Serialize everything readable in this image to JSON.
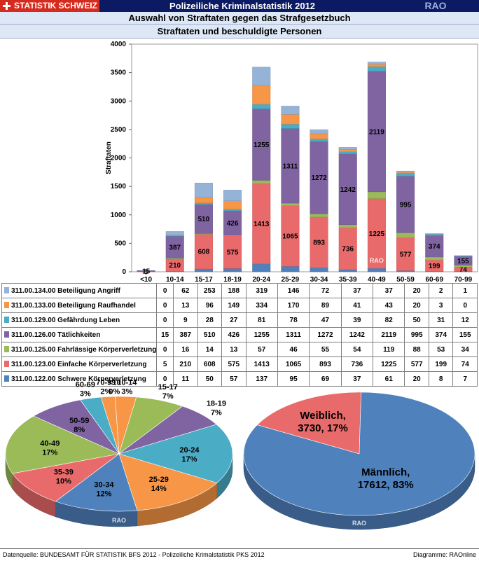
{
  "header": {
    "logo_text": "STATISTIK SCHWEIZ",
    "title": "Polizeiliche Kriminalstatistik 2012",
    "brand": "RAO"
  },
  "subtitle1": "Auswahl von Straftaten gegen das Strafgesetzbuch",
  "subtitle2": "Straftaten und beschuldigte Personen",
  "watermark": "RAO",
  "chart_data": [
    {
      "type": "bar",
      "stacked": true,
      "ylabel": "Straftaten",
      "ylim": [
        0,
        4000
      ],
      "yticks": [
        "0",
        "500",
        "1000",
        "1500",
        "2000",
        "2500",
        "3000",
        "3500",
        "4000"
      ],
      "categories": [
        "<10",
        "10-14",
        "15-17",
        "18-19",
        "20-24",
        "25-29",
        "30-34",
        "35-39",
        "40-49",
        "50-59",
        "60-69",
        "70-99"
      ],
      "series": [
        {
          "name": "311.00.122.00 Schwere Körperverletzung",
          "color": "#4f81bd",
          "values": [
            0,
            11,
            50,
            57,
            137,
            95,
            69,
            37,
            61,
            20,
            8,
            7
          ]
        },
        {
          "name": "311.00.123.00 Einfache Körperverletzung",
          "color": "#e96a6a",
          "values": [
            5,
            210,
            608,
            575,
            1413,
            1065,
            893,
            736,
            1225,
            577,
            199,
            74
          ]
        },
        {
          "name": "311.00.125.00 Fahrlässige Körperverletzung",
          "color": "#9bbb59",
          "values": [
            0,
            16,
            14,
            13,
            57,
            46,
            55,
            54,
            119,
            88,
            53,
            34
          ]
        },
        {
          "name": "311.00.126.00 Tätlichkeiten",
          "color": "#8064a2",
          "values": [
            15,
            387,
            510,
            426,
            1255,
            1311,
            1272,
            1242,
            2119,
            995,
            374,
            155
          ]
        },
        {
          "name": "311.00.129.00 Gefährdung Leben",
          "color": "#4bacc6",
          "values": [
            0,
            9,
            28,
            27,
            81,
            78,
            47,
            39,
            82,
            50,
            31,
            12
          ]
        },
        {
          "name": "311.00.133.00 Beteiligung Raufhandel",
          "color": "#f79646",
          "values": [
            0,
            13,
            96,
            149,
            334,
            170,
            89,
            41,
            43,
            20,
            3,
            0
          ]
        },
        {
          "name": "311.00.134.00 Beteiligung Angriff",
          "color": "#95b3d7",
          "values": [
            0,
            62,
            253,
            188,
            319,
            146,
            72,
            37,
            37,
            20,
            2,
            1
          ]
        }
      ],
      "labeled_series": [
        "311.00.123.00 Einfache Körperverletzung",
        "311.00.126.00 Tätlichkeiten"
      ]
    },
    {
      "type": "pie",
      "labels": [
        "<10",
        "10-14",
        "15-17",
        "18-19",
        "20-24",
        "25-29",
        "30-34",
        "35-39",
        "40-49",
        "50-59",
        "60-69",
        "70-99"
      ],
      "values": [
        0,
        3,
        7,
        7,
        17,
        14,
        12,
        10,
        17,
        8,
        3,
        2
      ],
      "value_labels": [
        "0%",
        "3%",
        "7%",
        "7%",
        "17%",
        "14%",
        "12%",
        "10%",
        "17%",
        "8%",
        "3%",
        "2%"
      ],
      "colors": [
        "#e96a6a",
        "#f79646",
        "#9bbb59",
        "#8064a2",
        "#4bacc6",
        "#f79646",
        "#4f81bd",
        "#e96a6a",
        "#9bbb59",
        "#8064a2",
        "#4bacc6",
        "#f79646"
      ]
    },
    {
      "type": "pie",
      "labels": [
        "Weiblich",
        "Männlich"
      ],
      "values": [
        3730,
        17612
      ],
      "value_labels": [
        "3730, 17%",
        "17612, 83%"
      ],
      "colors": [
        "#e96a6a",
        "#4f81bd"
      ]
    }
  ],
  "footer": {
    "source": "Datenquelle: BUNDESAMT FÜR STATISTIK BFS 2012 - Polizeiliche Krimalstatistik PKS 2012",
    "credit": "Diagramme: RAOnline"
  }
}
